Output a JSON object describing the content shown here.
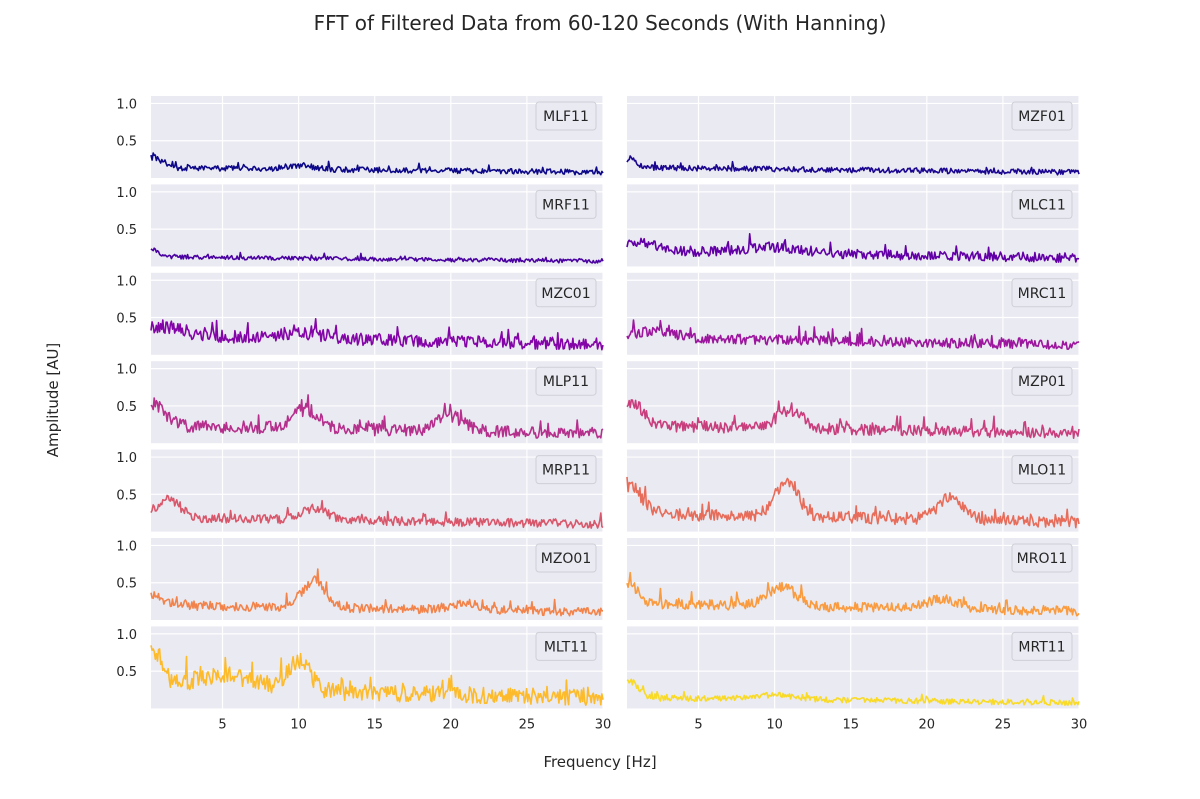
{
  "figure": {
    "title": "FFT of Filtered Data from 60-120 Seconds (With Hanning)",
    "xlabel": "Frequency [Hz]",
    "ylabel": "Amplitude [AU]",
    "colors": {
      "plot_bg": "#eaeaf2",
      "grid": "#ffffff"
    }
  },
  "chart_data": {
    "type": "line",
    "layout": "7x2 small multiples, shared x and y axes",
    "xlim": [
      0.3,
      30
    ],
    "ylim": [
      0.0,
      1.1
    ],
    "xticks": [
      5,
      10,
      15,
      20,
      25,
      30
    ],
    "yticks": [
      0.5,
      1.0
    ],
    "grid": true,
    "legend_placement": "upper right",
    "series": [
      {
        "name": "MLF11",
        "color": "#0d0887",
        "base": 0.12,
        "noise": 0.07,
        "peaks": [
          [
            0.5,
            0.14,
            0.6
          ],
          [
            10,
            0.05,
            1.2
          ]
        ],
        "seed": 11
      },
      {
        "name": "MZF01",
        "color": "#1b0690",
        "base": 0.12,
        "noise": 0.07,
        "peaks": [
          [
            0.5,
            0.12,
            0.6
          ]
        ],
        "seed": 12
      },
      {
        "name": "MRF11",
        "color": "#4a02a0",
        "base": 0.11,
        "noise": 0.05,
        "peaks": [
          [
            0.4,
            0.1,
            0.6
          ]
        ],
        "seed": 13
      },
      {
        "name": "MLC11",
        "color": "#6200a6",
        "base": 0.18,
        "noise": 0.12,
        "peaks": [
          [
            1,
            0.1,
            2
          ],
          [
            10,
            0.08,
            2.5
          ]
        ],
        "seed": 14
      },
      {
        "name": "MZC01",
        "color": "#8405a7",
        "base": 0.22,
        "noise": 0.15,
        "peaks": [
          [
            1,
            0.12,
            2
          ],
          [
            10,
            0.06,
            2.5
          ]
        ],
        "seed": 15
      },
      {
        "name": "MRC11",
        "color": "#9c179e",
        "base": 0.2,
        "noise": 0.12,
        "peaks": [
          [
            2,
            0.08,
            2
          ]
        ],
        "seed": 16
      },
      {
        "name": "MLP11",
        "color": "#b52f8c",
        "base": 0.2,
        "noise": 0.15,
        "peaks": [
          [
            0.5,
            0.3,
            1
          ],
          [
            10.5,
            0.25,
            1.2
          ],
          [
            20,
            0.2,
            1.2
          ]
        ],
        "seed": 17
      },
      {
        "name": "MZP01",
        "color": "#c93f7e",
        "base": 0.2,
        "noise": 0.13,
        "peaks": [
          [
            0.7,
            0.3,
            1
          ],
          [
            11,
            0.25,
            1.2
          ]
        ],
        "seed": 18
      },
      {
        "name": "MRP11",
        "color": "#d8576b",
        "base": 0.16,
        "noise": 0.11,
        "peaks": [
          [
            1.5,
            0.25,
            1
          ],
          [
            11,
            0.15,
            1.2
          ]
        ],
        "seed": 19
      },
      {
        "name": "MLO11",
        "color": "#e76d5a",
        "base": 0.2,
        "noise": 0.14,
        "peaks": [
          [
            0.6,
            0.35,
            1
          ],
          [
            10.8,
            0.45,
            1.1
          ],
          [
            21.5,
            0.28,
            1.2
          ]
        ],
        "seed": 20
      },
      {
        "name": "MZO01",
        "color": "#f2844b",
        "base": 0.17,
        "noise": 0.11,
        "peaks": [
          [
            0.5,
            0.15,
            0.8
          ],
          [
            11,
            0.35,
            1.1
          ],
          [
            21,
            0.08,
            1.5
          ]
        ],
        "seed": 21
      },
      {
        "name": "MRO11",
        "color": "#f99b3e",
        "base": 0.19,
        "noise": 0.12,
        "peaks": [
          [
            0.5,
            0.25,
            0.7
          ],
          [
            10.5,
            0.25,
            1.3
          ],
          [
            21,
            0.12,
            1.5
          ]
        ],
        "seed": 22
      },
      {
        "name": "MLT11",
        "color": "#fdbb2b",
        "base": 0.22,
        "noise": 0.2,
        "peaks": [
          [
            0.5,
            0.5,
            0.8
          ],
          [
            5,
            0.2,
            3
          ],
          [
            10,
            0.4,
            1.1
          ]
        ],
        "seed": 23
      },
      {
        "name": "MRT11",
        "color": "#f8da27",
        "base": 0.12,
        "noise": 0.07,
        "peaks": [
          [
            0.5,
            0.22,
            0.8
          ],
          [
            10,
            0.06,
            2
          ]
        ],
        "seed": 24
      }
    ]
  }
}
